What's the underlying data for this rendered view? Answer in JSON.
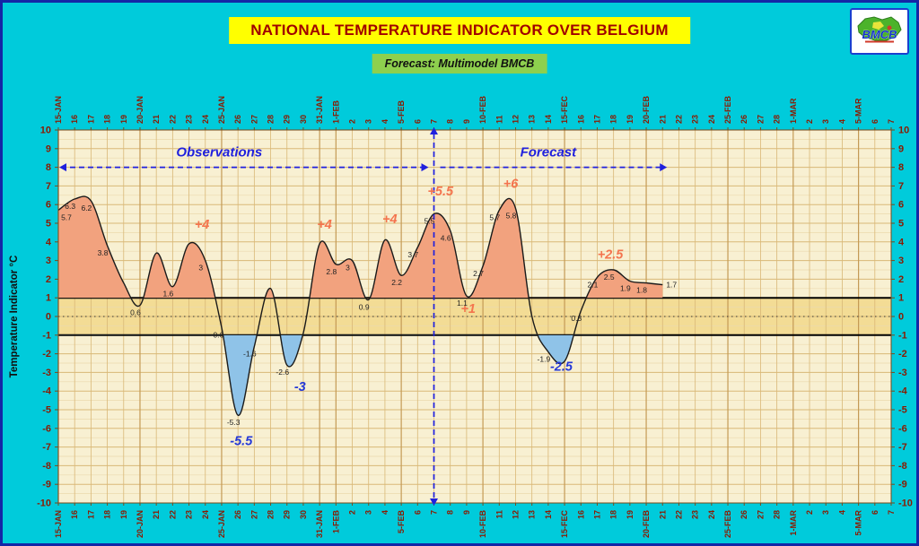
{
  "title": "NATIONAL TEMPERATURE INDICATOR OVER  BELGIUM",
  "subtitle": "Forecast:  Multimodel BMCB",
  "logo": {
    "text": "BMCB"
  },
  "ylabel": "Temperature Indicator  °C",
  "regions": {
    "left_label": "Observations",
    "right_label": "Forecast"
  },
  "colors": {
    "page_bg": "#00CBDB",
    "border": "#1426A6",
    "title_bg": "#FFFF00",
    "title_text": "#A00000",
    "subtitle_bg": "#8ED04E",
    "plot_bg": "#F8F0D2",
    "grid_major": "#D9B877",
    "grid_minor": "#EBD9AD",
    "grid_month": "#C49A55",
    "band_fill": "#F3DC95",
    "band_line": "#000000",
    "pos_fill": "#F2A27E",
    "neg_fill": "#8FC3E8",
    "curve": "#1A1A1A",
    "axis_text": "#8B1A00",
    "plot_border": "#7A4A1A",
    "annotation_pos": "#F4744E",
    "annotation_neg": "#2438D8",
    "divider": "#2020DD",
    "value_label": "#222222"
  },
  "chart_data": {
    "type": "line",
    "title": "NATIONAL TEMPERATURE INDICATOR OVER  BELGIUM",
    "subtitle": "Forecast:  Multimodel BMCB",
    "ylabel": "Temperature Indicator  °C",
    "ylim": [
      -10,
      10
    ],
    "y_tick_step": 1,
    "band": [
      -1,
      1
    ],
    "grid": true,
    "x_dates": [
      "15-JAN",
      "16",
      "17",
      "18",
      "19",
      "20-JAN",
      "21",
      "22",
      "23",
      "24",
      "25-JAN",
      "26",
      "27",
      "28",
      "29",
      "30",
      "31-JAN",
      "1-FEB",
      "2",
      "3",
      "4",
      "5-FEB",
      "6",
      "7",
      "8",
      "9",
      "10-FEB",
      "11",
      "12",
      "13",
      "14",
      "15-FEC",
      "16",
      "17",
      "18",
      "19",
      "20-FEB",
      "21",
      "22",
      "23",
      "24",
      "25-FEB",
      "26",
      "27",
      "28",
      "1-MAR",
      "2",
      "3",
      "4",
      "5-MAR",
      "6",
      "7"
    ],
    "divider_index": 23,
    "divider_date": "7-FEB",
    "series": [
      {
        "name": "National Temperature Indicator",
        "values": [
          5.7,
          6.3,
          6.2,
          3.8,
          1.8,
          0.6,
          3.4,
          1.6,
          3.9,
          3.0,
          -0.6,
          -5.3,
          -1.6,
          1.5,
          -2.6,
          -0.9,
          3.9,
          2.8,
          3.0,
          0.9,
          4.1,
          2.2,
          3.7,
          5.5,
          4.6,
          1.1,
          2.7,
          5.7,
          5.8,
          0.0,
          -1.9,
          -2.4,
          0.3,
          2.1,
          2.5,
          1.9,
          1.8,
          1.7,
          null,
          null,
          null,
          null,
          null,
          null,
          null,
          null,
          null,
          null,
          null,
          null,
          null,
          null
        ]
      }
    ],
    "annotations": [
      {
        "text": "+4",
        "xi": 8.8,
        "v": 4.7,
        "kind": "pos"
      },
      {
        "text": "-5.5",
        "xi": 11.2,
        "v": -6.9,
        "kind": "neg"
      },
      {
        "text": "-3",
        "xi": 14.8,
        "v": -4.0,
        "kind": "neg"
      },
      {
        "text": "+4",
        "xi": 16.3,
        "v": 4.7,
        "kind": "pos"
      },
      {
        "text": "+4",
        "xi": 20.3,
        "v": 5.0,
        "kind": "pos"
      },
      {
        "text": "+5.5",
        "xi": 23.4,
        "v": 6.5,
        "kind": "pos"
      },
      {
        "text": "+1",
        "xi": 25.1,
        "v": 0.2,
        "kind": "pos"
      },
      {
        "text": "+6",
        "xi": 27.7,
        "v": 6.9,
        "kind": "pos"
      },
      {
        "text": "-2.5",
        "xi": 30.8,
        "v": -2.9,
        "kind": "neg"
      },
      {
        "text": "+2.5",
        "xi": 33.8,
        "v": 3.1,
        "kind": "pos"
      }
    ],
    "point_labels": [
      [
        0,
        "5.7"
      ],
      [
        1,
        "6.3"
      ],
      [
        2,
        "6.2"
      ],
      [
        3,
        "3.8"
      ],
      [
        5,
        "0.6"
      ],
      [
        7,
        "1.6"
      ],
      [
        9,
        "3"
      ],
      [
        10,
        "-0.6"
      ],
      [
        11,
        "-5.3"
      ],
      [
        12,
        "-1.6"
      ],
      [
        14,
        "-2.6"
      ],
      [
        17,
        "2.8"
      ],
      [
        18,
        "3"
      ],
      [
        19,
        "0.9"
      ],
      [
        21,
        "2.2"
      ],
      [
        22,
        "3.7"
      ],
      [
        23,
        "5.5"
      ],
      [
        24,
        "4.6"
      ],
      [
        25,
        "1.1"
      ],
      [
        26,
        "2.7"
      ],
      [
        27,
        "5.7"
      ],
      [
        28,
        "5.8"
      ],
      [
        30,
        "-1.9"
      ],
      [
        32,
        "0.3"
      ],
      [
        33,
        "2.1"
      ],
      [
        34,
        "2.5"
      ],
      [
        35,
        "1.9"
      ],
      [
        36,
        "1.8"
      ],
      [
        37,
        "1.7"
      ]
    ]
  }
}
